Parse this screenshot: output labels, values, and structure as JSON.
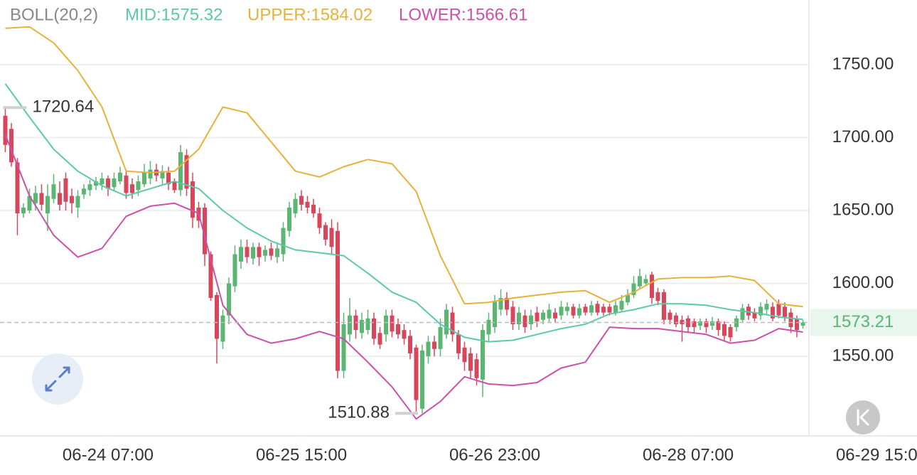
{
  "chart_data": {
    "type": "candlestick",
    "indicator": "BOLL(20,2)",
    "up_color": "#5bb672",
    "down_color": "#d7475c",
    "ylim": [
      1495.4,
      1794.4
    ],
    "yticks": [
      {
        "value": 1550,
        "label": "1550.00"
      },
      {
        "value": 1600,
        "label": "1600.00"
      },
      {
        "value": 1650,
        "label": "1650.00"
      },
      {
        "value": 1700,
        "label": "1700.00"
      },
      {
        "value": 1750,
        "label": "1750.00"
      }
    ],
    "xlim": [
      -0.88,
      150.88
    ],
    "xticks": [
      {
        "value": 17,
        "label": "06-24 07:00"
      },
      {
        "value": 49,
        "label": "06-25 15:00"
      },
      {
        "value": 81,
        "label": "06-26 23:00"
      },
      {
        "value": 113,
        "label": "06-28 07:00"
      },
      {
        "value": 145,
        "label": "06-29 15:00"
      }
    ],
    "grid": true,
    "candles": [
      [
        1715,
        1720.64,
        1690,
        1695
      ],
      [
        1706,
        1710,
        1680,
        1683
      ],
      [
        1683,
        1686,
        1633,
        1648
      ],
      [
        1648,
        1655,
        1645,
        1652
      ],
      [
        1650,
        1665,
        1648,
        1660
      ],
      [
        1655,
        1667,
        1650,
        1662
      ],
      [
        1662,
        1668,
        1650,
        1654
      ],
      [
        1648,
        1668,
        1636,
        1660
      ],
      [
        1658,
        1675,
        1655,
        1668
      ],
      [
        1662,
        1670,
        1650,
        1654
      ],
      [
        1672,
        1676,
        1650,
        1656
      ],
      [
        1660,
        1665,
        1648,
        1655
      ],
      [
        1652,
        1664,
        1645,
        1660
      ],
      [
        1661,
        1668,
        1658,
        1665
      ],
      [
        1664,
        1671,
        1660,
        1668
      ],
      [
        1667,
        1673,
        1664,
        1670
      ],
      [
        1668,
        1676,
        1664,
        1672
      ],
      [
        1672,
        1674,
        1660,
        1665
      ],
      [
        1666,
        1676,
        1663,
        1672
      ],
      [
        1670,
        1680,
        1668,
        1676
      ],
      [
        1674,
        1678,
        1658,
        1662
      ],
      [
        1668,
        1672,
        1658,
        1662
      ],
      [
        1664,
        1674,
        1660,
        1670
      ],
      [
        1668,
        1682,
        1666,
        1676
      ],
      [
        1672,
        1684,
        1668,
        1678
      ],
      [
        1678,
        1682,
        1670,
        1674
      ],
      [
        1672,
        1681,
        1668,
        1677
      ],
      [
        1676,
        1680,
        1664,
        1668
      ],
      [
        1670,
        1672,
        1662,
        1664
      ],
      [
        1664,
        1695,
        1660,
        1690
      ],
      [
        1688,
        1692,
        1660,
        1665
      ],
      [
        1670,
        1676,
        1638,
        1645
      ],
      [
        1652,
        1656,
        1638,
        1643
      ],
      [
        1652,
        1655,
        1612,
        1620
      ],
      [
        1620,
        1622,
        1588,
        1590
      ],
      [
        1592,
        1594,
        1545,
        1562
      ],
      [
        1560,
        1582,
        1555,
        1578
      ],
      [
        1578,
        1604,
        1572,
        1600
      ],
      [
        1598,
        1626,
        1594,
        1620
      ],
      [
        1615,
        1630,
        1610,
        1625
      ],
      [
        1625,
        1630,
        1614,
        1618
      ],
      [
        1617,
        1628,
        1613,
        1625
      ],
      [
        1625,
        1628,
        1612,
        1618
      ],
      [
        1619,
        1626,
        1615,
        1623
      ],
      [
        1624,
        1628,
        1616,
        1619
      ],
      [
        1618,
        1628,
        1614,
        1624
      ],
      [
        1620,
        1642,
        1615,
        1638
      ],
      [
        1636,
        1656,
        1632,
        1652
      ],
      [
        1648,
        1662,
        1645,
        1658
      ],
      [
        1660,
        1664,
        1650,
        1654
      ],
      [
        1656,
        1660,
        1648,
        1652
      ],
      [
        1654,
        1658,
        1645,
        1648
      ],
      [
        1648,
        1652,
        1634,
        1638
      ],
      [
        1640,
        1642,
        1626,
        1630
      ],
      [
        1638,
        1644,
        1620,
        1625
      ],
      [
        1636,
        1642,
        1535,
        1540
      ],
      [
        1540,
        1580,
        1535,
        1572
      ],
      [
        1565,
        1590,
        1560,
        1578
      ],
      [
        1578,
        1582,
        1562,
        1568
      ],
      [
        1566,
        1580,
        1562,
        1575
      ],
      [
        1568,
        1582,
        1565,
        1576
      ],
      [
        1576,
        1580,
        1558,
        1562
      ],
      [
        1566,
        1570,
        1555,
        1558
      ],
      [
        1565,
        1582,
        1560,
        1578
      ],
      [
        1578,
        1582,
        1563,
        1567
      ],
      [
        1572,
        1576,
        1562,
        1565
      ],
      [
        1568,
        1572,
        1558,
        1562
      ],
      [
        1564,
        1568,
        1548,
        1552
      ],
      [
        1556,
        1558,
        1512,
        1520
      ],
      [
        1514,
        1558,
        1510.88,
        1554
      ],
      [
        1550,
        1564,
        1545,
        1560
      ],
      [
        1560,
        1564,
        1550,
        1555
      ],
      [
        1555,
        1576,
        1550,
        1570
      ],
      [
        1565,
        1586,
        1562,
        1582
      ],
      [
        1580,
        1584,
        1560,
        1565
      ],
      [
        1565,
        1568,
        1548,
        1552
      ],
      [
        1556,
        1560,
        1540,
        1546
      ],
      [
        1552,
        1556,
        1535,
        1540
      ],
      [
        1548,
        1552,
        1530,
        1535
      ],
      [
        1534,
        1572,
        1522,
        1568
      ],
      [
        1565,
        1580,
        1560,
        1575
      ],
      [
        1570,
        1592,
        1566,
        1588
      ],
      [
        1582,
        1596,
        1578,
        1590
      ],
      [
        1590,
        1594,
        1578,
        1582
      ],
      [
        1584,
        1588,
        1568,
        1572
      ],
      [
        1572,
        1584,
        1568,
        1580
      ],
      [
        1578,
        1582,
        1566,
        1570
      ],
      [
        1572,
        1582,
        1568,
        1578
      ],
      [
        1580,
        1584,
        1570,
        1574
      ],
      [
        1575,
        1582,
        1572,
        1580
      ],
      [
        1576,
        1586,
        1573,
        1582
      ],
      [
        1580,
        1583,
        1573,
        1576
      ],
      [
        1578,
        1588,
        1575,
        1584
      ],
      [
        1581,
        1587,
        1578,
        1584
      ],
      [
        1584,
        1586,
        1576,
        1578
      ],
      [
        1578,
        1586,
        1576,
        1583
      ],
      [
        1584,
        1586,
        1578,
        1580
      ],
      [
        1580,
        1588,
        1578,
        1585
      ],
      [
        1586,
        1588,
        1578,
        1580
      ],
      [
        1584,
        1586,
        1578,
        1580
      ],
      [
        1584,
        1586,
        1578,
        1580
      ],
      [
        1580,
        1588,
        1578,
        1585
      ],
      [
        1582,
        1592,
        1580,
        1588
      ],
      [
        1587,
        1596,
        1585,
        1592
      ],
      [
        1592,
        1605,
        1590,
        1600
      ],
      [
        1598,
        1610,
        1596,
        1605
      ],
      [
        1600,
        1606,
        1598,
        1603
      ],
      [
        1606,
        1608,
        1586,
        1590
      ],
      [
        1594,
        1597,
        1585,
        1588
      ],
      [
        1594,
        1596,
        1572,
        1575
      ],
      [
        1580,
        1582,
        1572,
        1575
      ],
      [
        1578,
        1580,
        1570,
        1572
      ],
      [
        1575,
        1578,
        1560,
        1572
      ],
      [
        1576,
        1578,
        1566,
        1570
      ],
      [
        1574,
        1576,
        1566,
        1570
      ],
      [
        1571,
        1576,
        1568,
        1574
      ],
      [
        1574,
        1576,
        1566,
        1570
      ],
      [
        1571,
        1577,
        1568,
        1574
      ],
      [
        1574,
        1576,
        1564,
        1568
      ],
      [
        1572,
        1574,
        1560,
        1564
      ],
      [
        1570,
        1572,
        1560,
        1563
      ],
      [
        1570,
        1578,
        1567,
        1576
      ],
      [
        1575,
        1586,
        1573,
        1583
      ],
      [
        1584,
        1586,
        1575,
        1578
      ],
      [
        1580,
        1583,
        1574,
        1576
      ],
      [
        1578,
        1587,
        1575,
        1584
      ],
      [
        1582,
        1589,
        1579,
        1586
      ],
      [
        1584,
        1587,
        1574,
        1576
      ],
      [
        1586,
        1589,
        1576,
        1578
      ],
      [
        1584,
        1587,
        1574,
        1577
      ],
      [
        1580,
        1583,
        1566,
        1570
      ],
      [
        1576,
        1578,
        1563,
        1568
      ],
      [
        1571,
        1575,
        1569,
        1573.21
      ]
    ],
    "series": [
      {
        "name": "MID:1575.32",
        "color": "#5cc9a7",
        "x": [
          0,
          4,
          8,
          12,
          16,
          20,
          24,
          28,
          32,
          36,
          40,
          44,
          48,
          52,
          56,
          60,
          64,
          68,
          72,
          76,
          80,
          84,
          88,
          92,
          96,
          100,
          104,
          108,
          112,
          116,
          120,
          124,
          128,
          132
        ],
        "values": [
          1737,
          1714,
          1692,
          1677,
          1667,
          1660,
          1665,
          1670,
          1665,
          1650,
          1638,
          1629,
          1623,
          1621,
          1619,
          1607,
          1594,
          1587,
          1572,
          1563,
          1560,
          1561,
          1565,
          1569,
          1572,
          1579,
          1582,
          1586,
          1586,
          1585,
          1582,
          1580,
          1577,
          1575.32
        ]
      },
      {
        "name": "UPPER:1584.02",
        "color": "#e8b13c",
        "x": [
          0,
          4,
          8,
          12,
          16,
          20,
          24,
          28,
          32,
          36,
          40,
          44,
          48,
          52,
          56,
          60,
          64,
          68,
          72,
          76,
          80,
          84,
          88,
          92,
          96,
          100,
          104,
          108,
          112,
          116,
          120,
          124,
          128,
          132
        ],
        "values": [
          1775,
          1776,
          1765,
          1746,
          1721,
          1677,
          1676,
          1677,
          1692,
          1721,
          1717,
          1697,
          1677,
          1673,
          1680,
          1685,
          1682,
          1663,
          1619,
          1586,
          1587,
          1590,
          1592,
          1594,
          1595,
          1587,
          1594,
          1603,
          1604,
          1604,
          1605,
          1602,
          1586,
          1584.02
        ]
      },
      {
        "name": "LOWER:1566.61",
        "color": "#cc4fa8",
        "x": [
          0,
          4,
          8,
          12,
          16,
          20,
          24,
          28,
          32,
          36,
          40,
          44,
          48,
          52,
          56,
          60,
          64,
          68,
          72,
          76,
          80,
          84,
          88,
          92,
          96,
          100,
          104,
          108,
          112,
          116,
          120,
          124,
          128,
          132
        ],
        "values": [
          1702,
          1660,
          1633,
          1618,
          1624,
          1646,
          1653,
          1655,
          1648,
          1585,
          1565,
          1559,
          1562,
          1567,
          1562,
          1546,
          1529,
          1507,
          1519,
          1536,
          1531,
          1530,
          1532,
          1542,
          1546,
          1570,
          1569,
          1569,
          1567,
          1565,
          1559,
          1561,
          1569,
          1566.61
        ]
      }
    ]
  }
}
